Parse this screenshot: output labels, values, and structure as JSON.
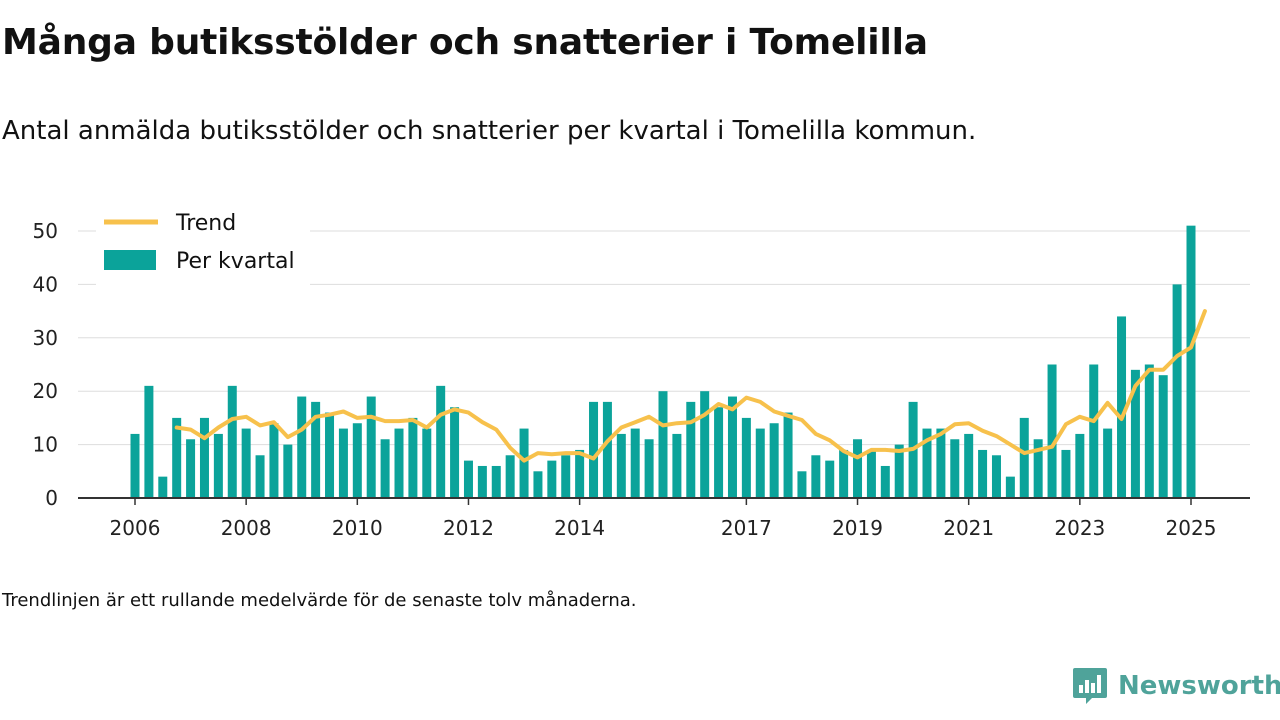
{
  "title": "Många butiksstölder och snatterier i Tomelilla",
  "subtitle": "Antal anmälda butiksstölder och snatterier per kvartal i Tomelilla kommun.",
  "footnote": "Trendlinjen är ett rullande medelvärde för de senaste tolv månaderna.",
  "brand": "Newsworthy",
  "colors": {
    "bar": "#0ba39a",
    "trend": "#f7c14c",
    "grid": "#dddddd",
    "axis": "#333333",
    "brand": "#4fa39a"
  },
  "chart_data": {
    "type": "bar",
    "x_start": 2006.0,
    "x_step": 0.25,
    "xlim": [
      2005.25,
      2026.0
    ],
    "ylim": [
      0,
      53
    ],
    "yticks": [
      0,
      10,
      20,
      30,
      40,
      50
    ],
    "xticks": [
      2006,
      2008,
      2010,
      2012,
      2014,
      2017,
      2019,
      2021,
      2023,
      2025
    ],
    "grid": true,
    "legend_position": "top-left",
    "series": [
      {
        "name": "Per kvartal",
        "type": "bar",
        "values": [
          12,
          21,
          4,
          15,
          11,
          15,
          12,
          21,
          13,
          8,
          14,
          10,
          19,
          18,
          16,
          13,
          14,
          19,
          11,
          13,
          15,
          13,
          21,
          17,
          7,
          6,
          6,
          8,
          13,
          5,
          7,
          8,
          9,
          18,
          18,
          12,
          13,
          11,
          20,
          12,
          18,
          20,
          17,
          19,
          15,
          13,
          14,
          16,
          5,
          8,
          7,
          9,
          11,
          9,
          6,
          10,
          18,
          13,
          13,
          11,
          12,
          9,
          8,
          4,
          15,
          11,
          25,
          9,
          12,
          25,
          13,
          34,
          24,
          25,
          23,
          40,
          51
        ]
      },
      {
        "name": "Trend",
        "type": "line",
        "start_index": 3,
        "values": [
          13.2,
          12.8,
          11.2,
          13.2,
          14.8,
          15.2,
          13.6,
          14.2,
          11.4,
          12.8,
          15.2,
          15.6,
          16.2,
          15.0,
          15.2,
          14.4,
          14.4,
          14.6,
          13.2,
          15.6,
          16.6,
          16.0,
          14.2,
          12.8,
          9.4,
          7.0,
          8.4,
          8.2,
          8.4,
          8.4,
          7.4,
          10.6,
          13.2,
          14.2,
          15.2,
          13.6,
          14.0,
          14.2,
          15.6,
          17.6,
          16.6,
          18.8,
          18.0,
          16.2,
          15.4,
          14.6,
          12.0,
          10.8,
          8.8,
          7.6,
          9.0,
          9.0,
          8.8,
          9.2,
          10.8,
          12.0,
          13.8,
          14.0,
          12.6,
          11.6,
          10.0,
          8.4,
          9.0,
          9.6,
          13.8,
          15.2,
          14.4,
          17.8,
          14.8,
          21.0,
          24.0,
          24.0,
          26.6,
          28.2,
          35.0
        ]
      }
    ]
  }
}
